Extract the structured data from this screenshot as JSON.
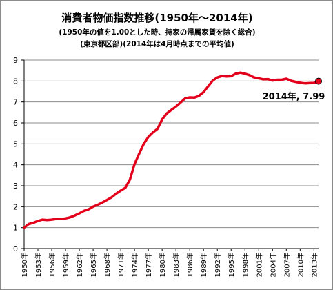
{
  "chart_data": {
    "type": "line",
    "title": "消費者物価指数推移(1950年～2014年)",
    "subtitle_1": "(1950年の値を1.00とした時、持家の帰属家賃を除く総合)",
    "subtitle_2": "(東京都区部)(2014年は4月時点までの平均値)",
    "ylim": [
      0,
      9
    ],
    "yticks": [
      "0",
      "1",
      "2",
      "3",
      "4",
      "5",
      "6",
      "7",
      "8",
      "9"
    ],
    "xlim": [
      1950,
      2014
    ],
    "xtick_labels": [
      "1950年",
      "1953年",
      "1956年",
      "1959年",
      "1962年",
      "1965年",
      "1968年",
      "1971年",
      "1974年",
      "1977年",
      "1980年",
      "1983年",
      "1986年",
      "1989年",
      "1992年",
      "1995年",
      "1998年",
      "2001年",
      "2004年",
      "2007年",
      "2010年",
      "2013年"
    ],
    "grid": true,
    "line_color": "#e3001b",
    "annotation": "2014年, 7.99",
    "series": [
      {
        "x": [
          1950,
          1951,
          1952,
          1953,
          1954,
          1955,
          1956,
          1957,
          1958,
          1959,
          1960,
          1961,
          1962,
          1963,
          1964,
          1965,
          1966,
          1967,
          1968,
          1969,
          1970,
          1971,
          1972,
          1973,
          1974,
          1975,
          1976,
          1977,
          1978,
          1979,
          1980,
          1981,
          1982,
          1983,
          1984,
          1985,
          1986,
          1987,
          1988,
          1989,
          1990,
          1991,
          1992,
          1993,
          1994,
          1995,
          1996,
          1997,
          1998,
          1999,
          2000,
          2001,
          2002,
          2003,
          2004,
          2005,
          2006,
          2007,
          2008,
          2009,
          2010,
          2011,
          2012,
          2013,
          2014
        ],
        "values": [
          1.0,
          1.17,
          1.23,
          1.32,
          1.38,
          1.36,
          1.38,
          1.41,
          1.41,
          1.44,
          1.49,
          1.58,
          1.68,
          1.8,
          1.87,
          2.0,
          2.09,
          2.2,
          2.32,
          2.45,
          2.62,
          2.77,
          2.9,
          3.3,
          4.03,
          4.53,
          5.0,
          5.33,
          5.55,
          5.72,
          6.17,
          6.45,
          6.62,
          6.78,
          6.97,
          7.17,
          7.22,
          7.21,
          7.29,
          7.47,
          7.75,
          8.02,
          8.17,
          8.24,
          8.22,
          8.23,
          8.35,
          8.4,
          8.35,
          8.28,
          8.17,
          8.13,
          8.08,
          8.09,
          8.02,
          8.06,
          8.06,
          8.11,
          8.01,
          7.96,
          7.92,
          7.89,
          7.9,
          7.91,
          7.99
        ]
      }
    ]
  }
}
